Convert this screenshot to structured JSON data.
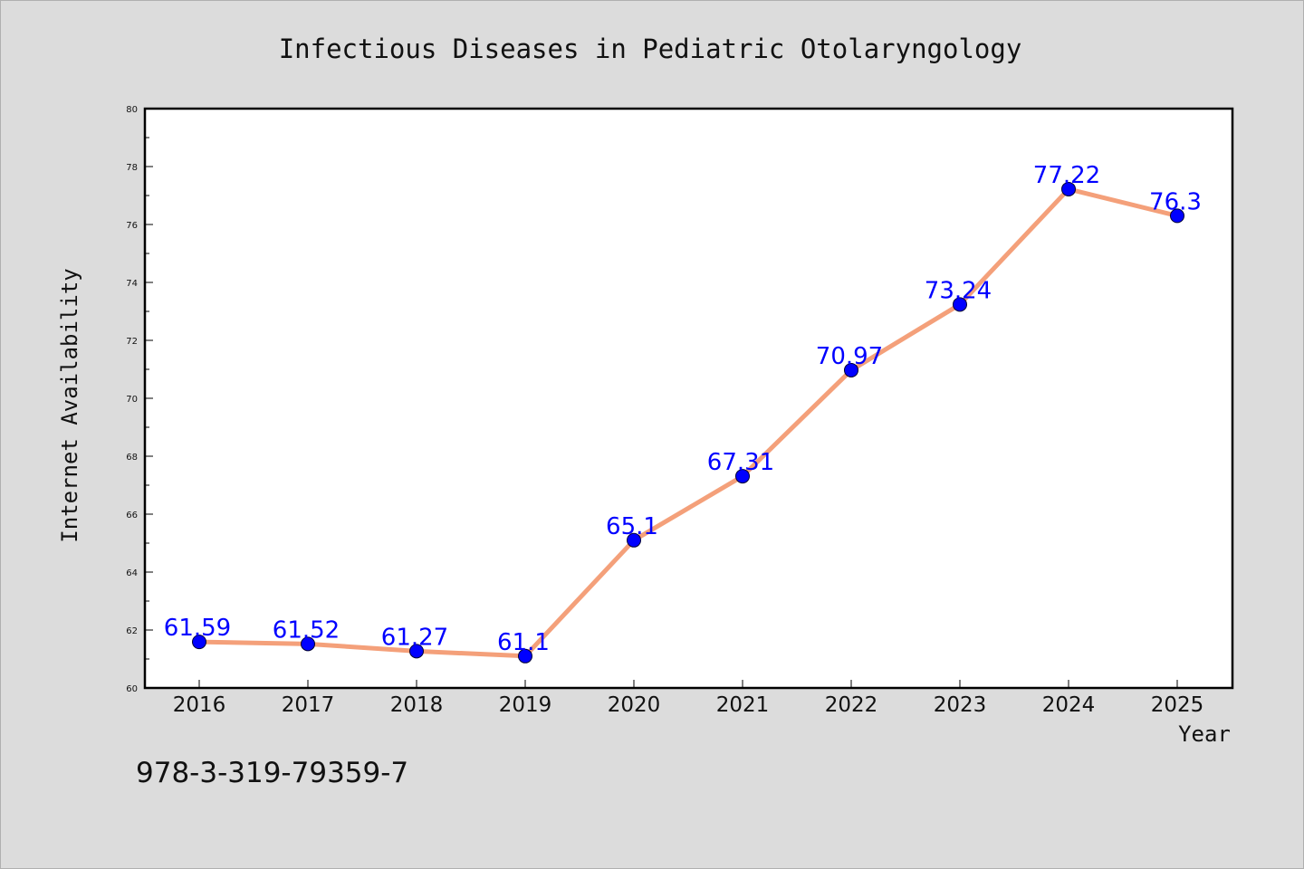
{
  "chart_data": {
    "type": "line",
    "title": "Infectious Diseases in Pediatric Otolaryngology",
    "xlabel": "Year",
    "ylabel": "Internet Availability",
    "x": [
      "2016",
      "2017",
      "2018",
      "2019",
      "2020",
      "2021",
      "2022",
      "2023",
      "2024",
      "2025"
    ],
    "values": [
      61.59,
      61.52,
      61.27,
      61.1,
      65.1,
      67.31,
      70.97,
      73.24,
      77.22,
      76.3
    ],
    "data_labels": [
      "61.59",
      "61.52",
      "61.27",
      "61.1",
      "65.1",
      "67.31",
      "70.97",
      "73.24",
      "77.22",
      "76.3"
    ],
    "ylim": [
      60,
      80
    ],
    "yticks": [
      "60",
      "62",
      "64",
      "66",
      "68",
      "70",
      "72",
      "74",
      "76",
      "78",
      "80"
    ],
    "grid": false,
    "line_color": "#f4a07a",
    "marker_color": "#0000ff",
    "label_color": "#0000ff"
  },
  "annotation": {
    "isbn": "978-3-319-79359-7"
  }
}
